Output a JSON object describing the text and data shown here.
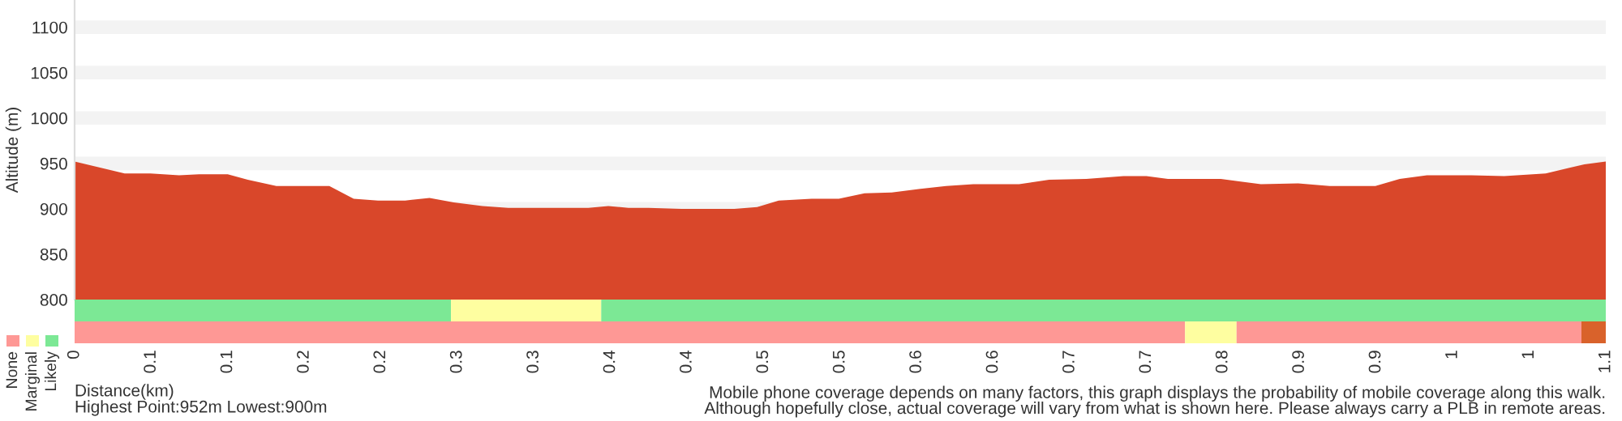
{
  "chart_data": [
    {
      "type": "area",
      "ylabel": "Altitude (m)",
      "xlim": [
        0,
        1.07
      ],
      "ylim": [
        800,
        1130
      ],
      "yticks": [
        800,
        850,
        900,
        950,
        1000,
        1050,
        1100
      ],
      "grid": "y",
      "tick_labels": "y",
      "series": [
        {
          "color": "#d9472a",
          "x": [
            0,
            0.016,
            0.035,
            0.053,
            0.073,
            0.087,
            0.107,
            0.121,
            0.141,
            0.16,
            0.178,
            0.195,
            0.212,
            0.231,
            0.248,
            0.265,
            0.285,
            0.303,
            0.325,
            0.345,
            0.359,
            0.373,
            0.387,
            0.401,
            0.424,
            0.447,
            0.461,
            0.477,
            0.492,
            0.515,
            0.534,
            0.552,
            0.571,
            0.591,
            0.609,
            0.628,
            0.66,
            0.681,
            0.707,
            0.733,
            0.749,
            0.764,
            0.801,
            0.829,
            0.855,
            0.877,
            0.909,
            0.926,
            0.945,
            0.976,
            0.999,
            1.028,
            1.044,
            1.055,
            1.07
          ],
          "values": [
            952,
            946,
            939,
            939,
            937,
            938,
            938,
            932,
            925,
            925,
            925,
            911,
            909,
            909,
            912,
            907,
            903,
            901,
            901,
            901,
            901,
            903,
            901,
            901,
            900,
            900,
            900,
            902,
            909,
            911,
            911,
            917,
            918,
            922,
            925,
            927,
            927,
            932,
            933,
            936,
            936,
            933,
            933,
            927,
            928,
            925,
            925,
            933,
            937,
            937,
            936,
            939,
            945,
            949,
            952
          ]
        }
      ]
    },
    {
      "type": "bar",
      "orientation": "horizontal",
      "categories": [
        null,
        null
      ],
      "xlabel": "Distance(km)",
      "xlim": [
        0,
        1.07
      ],
      "tick_labels": "x",
      "legend": "bottom left",
      "xticks": [
        0,
        {
          "value": 0.0535,
          "label": "0.1"
        },
        {
          "value": 0.107,
          "label": "0.1"
        },
        {
          "value": 0.1605,
          "label": "0.2"
        },
        {
          "value": 0.214,
          "label": "0.2"
        },
        {
          "value": 0.2675,
          "label": "0.3"
        },
        {
          "value": 0.321,
          "label": "0.3"
        },
        {
          "value": 0.3745,
          "label": "0.4"
        },
        {
          "value": 0.428,
          "label": "0.4"
        },
        {
          "value": 0.4815,
          "label": "0.5"
        },
        {
          "value": 0.535,
          "label": "0.5"
        },
        {
          "value": 0.5885,
          "label": "0.6"
        },
        {
          "value": 0.642,
          "label": "0.6"
        },
        {
          "value": 0.6955,
          "label": "0.7"
        },
        {
          "value": 0.749,
          "label": "0.7"
        },
        {
          "value": 0.8025,
          "label": "0.8"
        },
        {
          "value": 0.856,
          "label": "0.9"
        },
        {
          "value": 0.9095,
          "label": "0.9"
        },
        {
          "value": 0.963,
          "label": "1"
        },
        {
          "value": 1.0165,
          "label": "1"
        },
        {
          "value": 1.07,
          "label": "1.1"
        }
      ],
      "series": [
        {
          "name": "None",
          "color": "#fe9895",
          "values": [
            null,
            0.776
          ]
        },
        {
          "color": "#7ce895",
          "values": [
            0.263,
            null
          ]
        },
        {
          "name": "Marginal",
          "color": "#fefea0",
          "values": [
            0.105,
            0.036
          ]
        },
        {
          "name": "Likely",
          "color": "#7ce895",
          "values": [
            0.702,
            null
          ]
        },
        {
          "color": "#fe9895",
          "values": [
            null,
            0.241
          ]
        },
        {
          "color": "#d9622b",
          "values": [
            null,
            0.017
          ]
        }
      ],
      "stacked": true,
      "annotations": [
        "Highest Point:952m Lowest:900m",
        "Mobile phone coverage depends on many factors, this graph displays the probability of mobile coverage along this walk.\nAlthough hopefully close, actual coverage will vary from what is shown here. Please always carry a PLB in remote areas."
      ]
    }
  ]
}
